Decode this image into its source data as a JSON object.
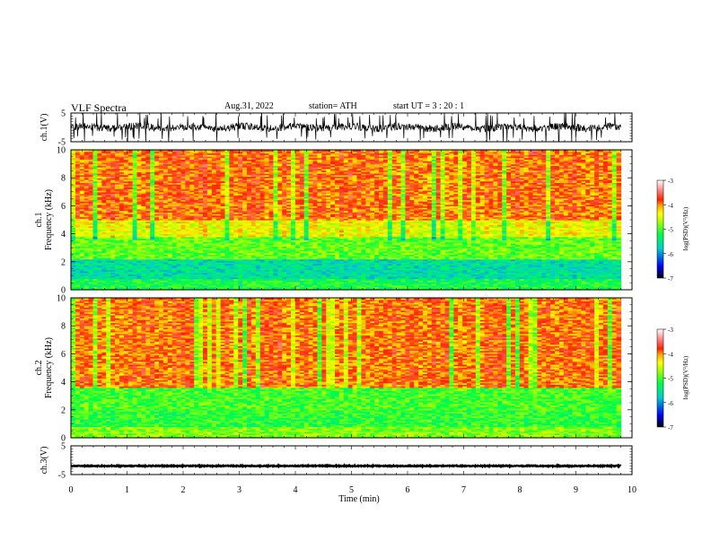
{
  "header": {
    "title": "VLF  Spectra",
    "date": "Aug.31, 2022",
    "station": "station= ATH",
    "start": "start  UT  =    3  : 20 : 1"
  },
  "colors": {
    "spectrum": [
      "#000000",
      "#0000ff",
      "#00cccc",
      "#00ff44",
      "#aaff00",
      "#ffff00",
      "#ffaa00",
      "#ff2200",
      "#ff8888",
      "#ffffff"
    ],
    "trace": "#000000"
  },
  "chart_data": [
    {
      "type": "line",
      "ylabel": "ch.1(V)",
      "ylim": [
        -5,
        5
      ],
      "yticks": [
        "5",
        "-5"
      ],
      "xlim": [
        0,
        10
      ],
      "signal": "noisy waveform, mostly between -2 and 2 V with frequent spikes to ±5 V"
    },
    {
      "type": "heatmap",
      "ylabel_channel": "ch.1",
      "ylabel": "Frequency  (kHz)",
      "ylim": [
        0,
        10
      ],
      "yticks": [
        "0",
        "2",
        "4",
        "6",
        "8",
        "10"
      ],
      "xlim": [
        0,
        10
      ],
      "data_end_min": 9.8,
      "colorbar": {
        "label": "log(PSD)(V²/Hz)",
        "range": [
          -7,
          -3
        ],
        "ticks": [
          "-3",
          "-4",
          "-5",
          "-6",
          "-7"
        ]
      },
      "bands": [
        {
          "fmin_khz": 0.0,
          "fmax_khz": 0.8,
          "log_psd": -5.2
        },
        {
          "fmin_khz": 0.8,
          "fmax_khz": 2.2,
          "log_psd": -5.6
        },
        {
          "fmin_khz": 2.2,
          "fmax_khz": 3.8,
          "log_psd": -4.9
        },
        {
          "fmin_khz": 3.8,
          "fmax_khz": 5.0,
          "log_psd": -4.4
        },
        {
          "fmin_khz": 5.0,
          "fmax_khz": 10.0,
          "log_psd": -3.9
        }
      ]
    },
    {
      "type": "heatmap",
      "ylabel_channel": "ch.2",
      "ylabel": "Frequency  (kHz)",
      "ylim": [
        0,
        10
      ],
      "yticks": [
        "0",
        "2",
        "4",
        "6",
        "8",
        "10"
      ],
      "xlim": [
        0,
        10
      ],
      "data_end_min": 9.8,
      "colorbar": {
        "label": "log(PSD)(V²/Hz)",
        "range": [
          -7,
          -3
        ],
        "ticks": [
          "-3",
          "-4",
          "-5",
          "-6",
          "-7"
        ]
      },
      "bands": [
        {
          "fmin_khz": 0.0,
          "fmax_khz": 0.8,
          "log_psd": -4.8
        },
        {
          "fmin_khz": 0.8,
          "fmax_khz": 2.0,
          "log_psd": -5.1
        },
        {
          "fmin_khz": 2.0,
          "fmax_khz": 3.6,
          "log_psd": -5.0
        },
        {
          "fmin_khz": 3.6,
          "fmax_khz": 10.0,
          "log_psd": -3.9
        }
      ]
    },
    {
      "type": "line",
      "ylabel": "ch.3(V)",
      "ylim": [
        -5,
        5
      ],
      "yticks": [
        "5",
        "-5"
      ],
      "xlim": [
        0,
        10
      ],
      "xlabel": "Time  (min)",
      "xticks": [
        "0",
        "1",
        "2",
        "3",
        "4",
        "5",
        "6",
        "7",
        "8",
        "9",
        "10"
      ],
      "signal": "nearly flat trace at about -2 V"
    }
  ]
}
